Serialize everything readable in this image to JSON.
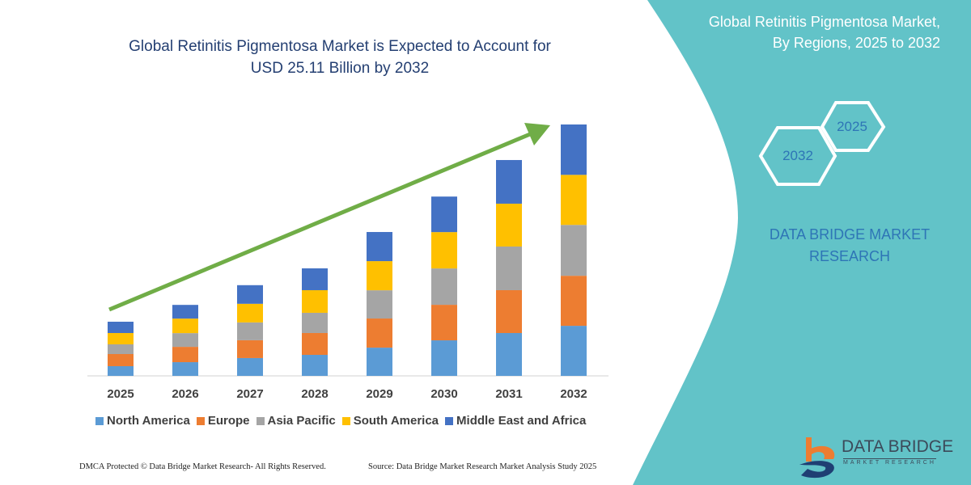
{
  "header": {
    "title_line1": "Global Retinitis Pigmentosa Market is Expected to Account for",
    "title_line2": "USD 25.11 Billion by 2032"
  },
  "side_panel": {
    "title_line1": "Global Retinitis Pigmentosa Market,",
    "title_line2": "By Regions, 2025 to 2032",
    "hex_start": "2025",
    "hex_end": "2032",
    "brand_line1": "DATA BRIDGE MARKET",
    "brand_line2": "RESEARCH",
    "logo_text": "DATA BRIDGE",
    "logo_subtext": "MARKET RESEARCH",
    "color": "#62c3c8"
  },
  "footer": {
    "left": "DMCA Protected © Data Bridge Market Research-  All Rights Reserved.",
    "right": "Source: Data Bridge Market Research  Market Analysis Study 2025"
  },
  "chart_data": {
    "type": "bar",
    "stacked": true,
    "title": "Global Retinitis Pigmentosa Market is Expected to Account for USD 25.11 Billion by 2032",
    "categories": [
      "2025",
      "2026",
      "2027",
      "2028",
      "2029",
      "2030",
      "2031",
      "2032"
    ],
    "series": [
      {
        "name": "North America",
        "color": "#5b9bd5",
        "values": [
          0.97,
          1.37,
          1.78,
          2.1,
          2.82,
          3.55,
          4.28,
          5.0
        ]
      },
      {
        "name": "Europe",
        "color": "#ed7d31",
        "values": [
          1.21,
          1.53,
          1.78,
          2.18,
          2.91,
          3.55,
          4.28,
          5.0
        ]
      },
      {
        "name": "Asia Pacific",
        "color": "#a5a5a5",
        "values": [
          0.97,
          1.37,
          1.78,
          2.02,
          2.82,
          3.63,
          4.36,
          5.08
        ]
      },
      {
        "name": "South America",
        "color": "#ffc000",
        "values": [
          1.13,
          1.45,
          1.86,
          2.26,
          2.91,
          3.63,
          4.28,
          5.0
        ]
      },
      {
        "name": "Middle East and Africa",
        "color": "#4472c4",
        "values": [
          1.13,
          1.37,
          1.86,
          2.18,
          2.91,
          3.55,
          4.36,
          5.03
        ]
      }
    ],
    "ylim": [
      0,
      25.11
    ],
    "grid": false,
    "legend": "bottom",
    "trend_arrow_color": "#70ad47",
    "xlabel": "",
    "ylabel": ""
  }
}
